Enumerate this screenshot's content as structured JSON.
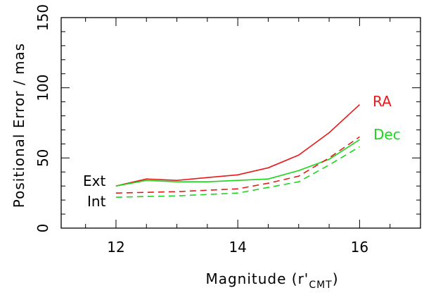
{
  "chart_data": {
    "type": "line",
    "xlabel": {
      "main": "Magnitude (r'",
      "sub": "CMT",
      "close": ")"
    },
    "ylabel": "Positional Error / mas",
    "xlim": [
      11.1,
      17
    ],
    "ylim": [
      0,
      150
    ],
    "xticks": [
      "12",
      "14",
      "16"
    ],
    "yticks": [
      "0",
      "50",
      "100",
      "150"
    ],
    "grid": false,
    "legend": "none",
    "annotations": [
      {
        "text": "RA",
        "color": "#e8191b"
      },
      {
        "text": "Dec",
        "color": "#1bd61b"
      },
      {
        "text": "Ext",
        "color": "#000000"
      },
      {
        "text": "Int",
        "color": "#000000"
      }
    ],
    "series": [
      {
        "color": "#e8191b",
        "dash": "solid",
        "x": [
          12,
          12.5,
          13,
          13.5,
          14,
          14.5,
          15,
          15.5,
          16
        ],
        "values": [
          30,
          35,
          34,
          36,
          38,
          43,
          52,
          68,
          88
        ]
      },
      {
        "color": "#1bd61b",
        "dash": "solid",
        "x": [
          12,
          12.5,
          13,
          13.5,
          14,
          14.5,
          15,
          15.5,
          16
        ],
        "values": [
          30,
          34,
          33,
          33,
          34,
          35,
          41,
          49,
          63
        ]
      },
      {
        "color": "#e8191b",
        "dash": "dashed",
        "x": [
          12,
          12.5,
          13,
          13.5,
          14,
          14.5,
          15,
          15.5,
          16
        ],
        "values": [
          25,
          25.5,
          26,
          27,
          28,
          32,
          37,
          50,
          65
        ]
      },
      {
        "color": "#1bd61b",
        "dash": "dashed",
        "x": [
          12,
          12.5,
          13,
          13.5,
          14,
          14.5,
          15,
          15.5,
          16
        ],
        "values": [
          22,
          22.5,
          23,
          24,
          25,
          29,
          33,
          45,
          58
        ]
      }
    ]
  }
}
